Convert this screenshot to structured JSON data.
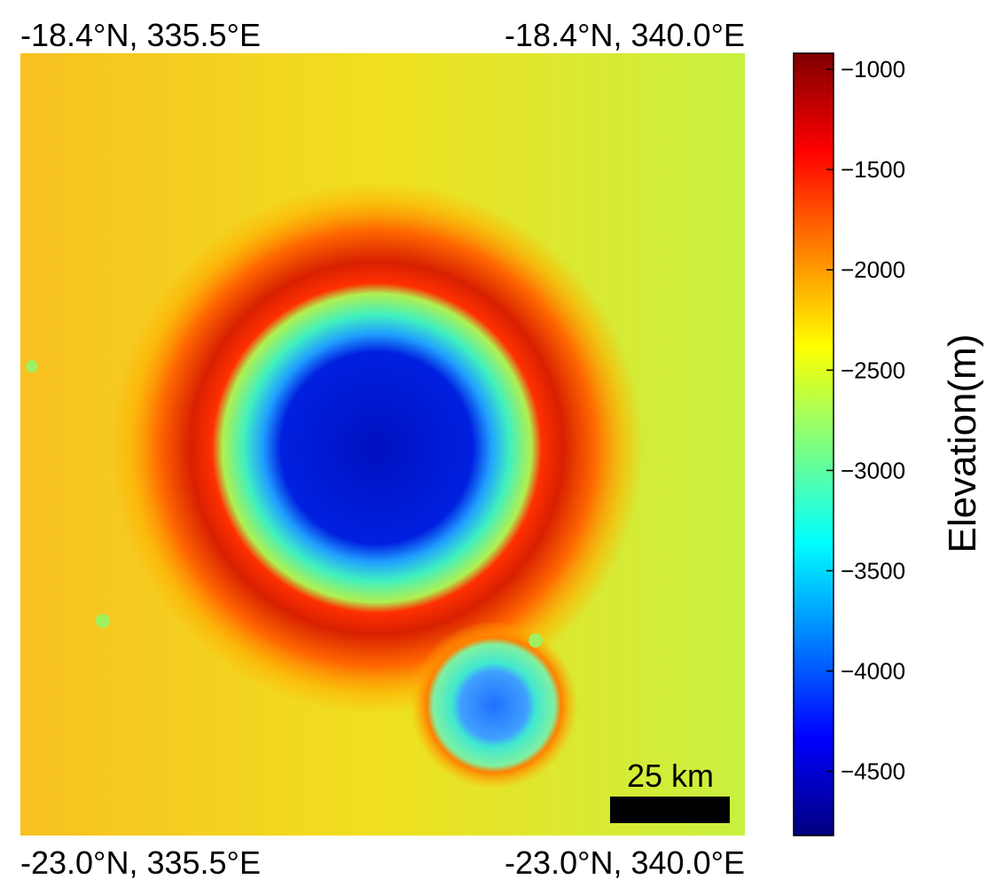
{
  "corner_labels": {
    "top_left": "-18.4°N, 335.5°E",
    "top_right": "-18.4°N, 340.0°E",
    "bottom_left": "-23.0°N, 335.5°E",
    "bottom_right": "-23.0°N, 340.0°E"
  },
  "scale_bar": {
    "label": "25 km"
  },
  "colorbar": {
    "label": "Elevation(m)",
    "lim": [
      -4820,
      -920
    ],
    "ticks": [
      {
        "value": -1000,
        "label": "−1000"
      },
      {
        "value": -1500,
        "label": "−1500"
      },
      {
        "value": -2000,
        "label": "−2000"
      },
      {
        "value": -2500,
        "label": "−2500"
      },
      {
        "value": -3000,
        "label": "−3000"
      },
      {
        "value": -3500,
        "label": "−3500"
      },
      {
        "value": -4000,
        "label": "−4000"
      },
      {
        "value": -4500,
        "label": "−4500"
      }
    ]
  }
}
